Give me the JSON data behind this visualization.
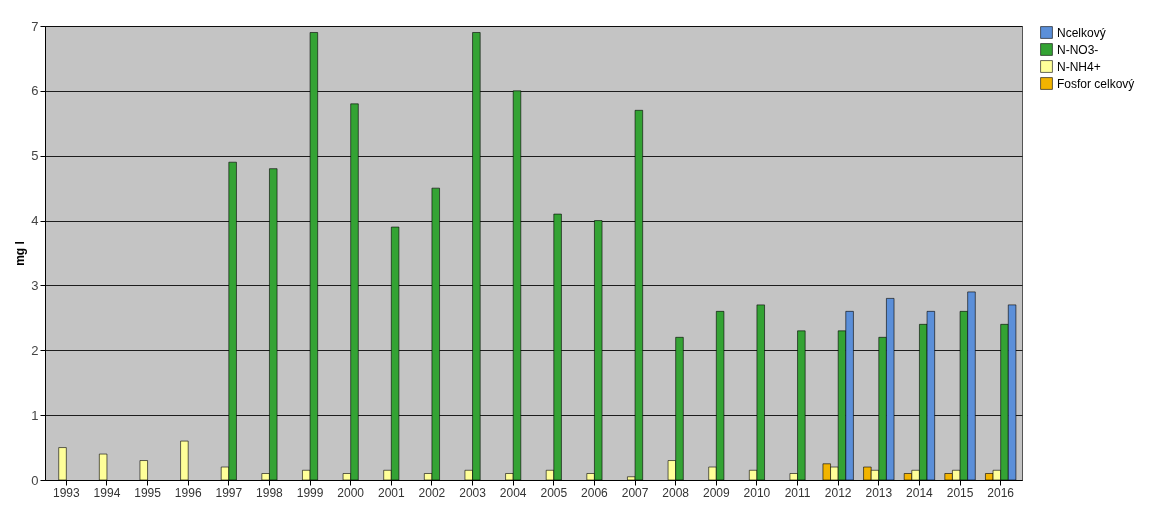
{
  "chart_data": {
    "type": "bar",
    "ylabel": "mg l",
    "categories": [
      "1993",
      "1994",
      "1995",
      "1996",
      "1997",
      "1998",
      "1999",
      "2000",
      "2001",
      "2002",
      "2003",
      "2004",
      "2005",
      "2006",
      "2007",
      "2008",
      "2009",
      "2010",
      "2011",
      "2012",
      "2013",
      "2014",
      "2015",
      "2016"
    ],
    "series": [
      {
        "name": "Fosfor celkový",
        "color": "#f2b400",
        "values": [
          null,
          null,
          null,
          null,
          null,
          null,
          null,
          null,
          null,
          null,
          null,
          null,
          null,
          null,
          null,
          null,
          null,
          null,
          null,
          0.25,
          0.2,
          0.1,
          0.1,
          0.1
        ]
      },
      {
        "name": "N-NH4+",
        "color": "#ffff99",
        "values": [
          0.5,
          0.4,
          0.3,
          0.6,
          0.2,
          0.1,
          0.15,
          0.1,
          0.15,
          0.1,
          0.15,
          0.1,
          0.15,
          0.1,
          0.05,
          0.3,
          0.2,
          0.15,
          0.1,
          0.2,
          0.15,
          0.15,
          0.15,
          0.15
        ]
      },
      {
        "name": "N-NO3-",
        "color": "#34a334",
        "values": [
          null,
          null,
          null,
          null,
          4.9,
          4.8,
          6.9,
          5.8,
          3.9,
          4.5,
          6.9,
          6.0,
          4.1,
          4.0,
          5.7,
          2.2,
          2.6,
          2.7,
          2.3,
          2.3,
          2.2,
          2.4,
          2.6,
          2.4
        ]
      },
      {
        "name": "Ncelkový",
        "color": "#5b8fd9",
        "values": [
          null,
          null,
          null,
          null,
          null,
          null,
          null,
          null,
          null,
          null,
          null,
          null,
          null,
          null,
          null,
          null,
          null,
          null,
          null,
          2.6,
          2.8,
          2.6,
          2.9,
          2.7
        ]
      }
    ],
    "ylim": [
      0,
      7
    ],
    "yticks": [
      0,
      1,
      2,
      3,
      4,
      5,
      6,
      7
    ],
    "grid": "y",
    "legend": "right"
  }
}
